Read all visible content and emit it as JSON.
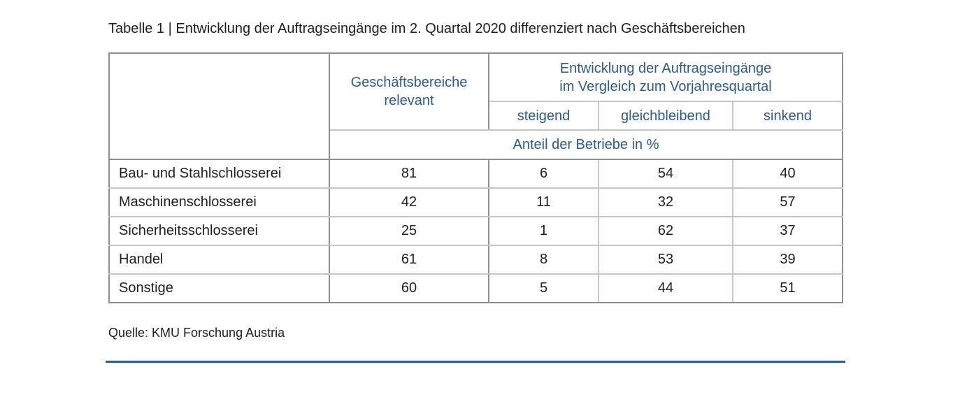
{
  "caption": "Tabelle 1 | Entwicklung der Auftragseingänge im 2. Quartal 2020 differenziert nach Geschäftsbereichen",
  "table": {
    "header": {
      "relevant_line1": "Geschäftsbereiche",
      "relevant_line2": "relevant",
      "group_line1": "Entwicklung der Auftragseingänge",
      "group_line2": "im Vergleich zum Vorjahresquartal",
      "col_rising": "steigend",
      "col_constant": "gleichbleibend",
      "col_falling": "sinkend",
      "unit": "Anteil der Betriebe in %"
    },
    "rows": [
      {
        "label": "Bau- und Stahlschlosserei",
        "relevant": "81",
        "rising": "6",
        "constant": "54",
        "falling": "40"
      },
      {
        "label": "Maschinenschlosserei",
        "relevant": "42",
        "rising": "11",
        "constant": "32",
        "falling": "57"
      },
      {
        "label": "Sicherheitsschlosserei",
        "relevant": "25",
        "rising": "1",
        "constant": "62",
        "falling": "37"
      },
      {
        "label": "Handel",
        "relevant": "61",
        "rising": "8",
        "constant": "53",
        "falling": "39"
      },
      {
        "label": "Sonstige",
        "relevant": "60",
        "rising": "5",
        "constant": "44",
        "falling": "51"
      }
    ]
  },
  "source": "Quelle: KMU Forschung Austria",
  "colors": {
    "header_text": "#2b5b8f",
    "rule": "#2b5b8f",
    "border_outer": "#8f8f8f",
    "border_inner": "#c6c6c6"
  }
}
